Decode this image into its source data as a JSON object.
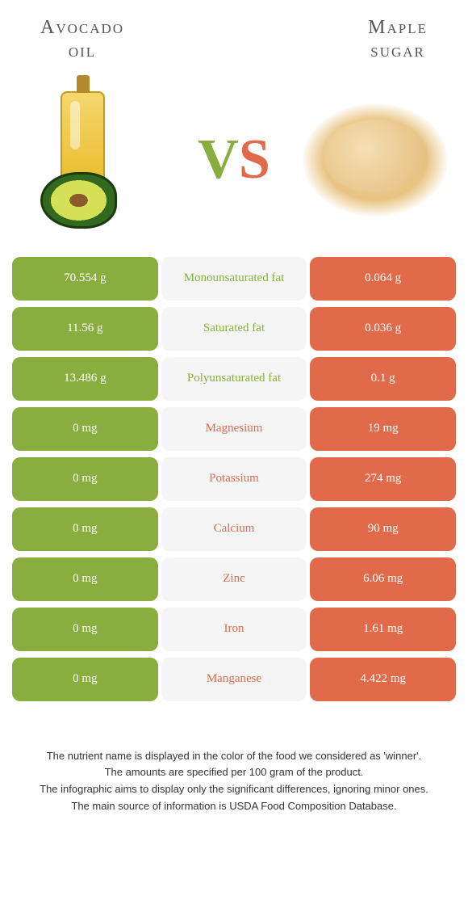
{
  "colors": {
    "left": "#8aad3f",
    "right": "#e06a4a",
    "mid_bg": "#f5f5f5",
    "white": "#ffffff"
  },
  "titles": {
    "left": "Avocado\noil",
    "right": "Maple\nsugar"
  },
  "vs": {
    "v": "V",
    "s": "S"
  },
  "rows": [
    {
      "left": "70.554 g",
      "label": "Monounsaturated fat",
      "right": "0.064 g",
      "winner": "left"
    },
    {
      "left": "11.56 g",
      "label": "Saturated fat",
      "right": "0.036 g",
      "winner": "left"
    },
    {
      "left": "13.486 g",
      "label": "Polyunsaturated fat",
      "right": "0.1 g",
      "winner": "left"
    },
    {
      "left": "0 mg",
      "label": "Magnesium",
      "right": "19 mg",
      "winner": "right"
    },
    {
      "left": "0 mg",
      "label": "Potassium",
      "right": "274 mg",
      "winner": "right"
    },
    {
      "left": "0 mg",
      "label": "Calcium",
      "right": "90 mg",
      "winner": "right"
    },
    {
      "left": "0 mg",
      "label": "Zinc",
      "right": "6.06 mg",
      "winner": "right"
    },
    {
      "left": "0 mg",
      "label": "Iron",
      "right": "1.61 mg",
      "winner": "right"
    },
    {
      "left": "0 mg",
      "label": "Manganese",
      "right": "4.422 mg",
      "winner": "right"
    }
  ],
  "footer": {
    "line1": "The nutrient name is displayed in the color of the food we considered as 'winner'.",
    "line2": "The amounts are specified per 100 gram of the product.",
    "line3": "The infographic aims to display only the significant differences, ignoring minor ones.",
    "line4": "The main source of information is USDA Food Composition Database."
  }
}
